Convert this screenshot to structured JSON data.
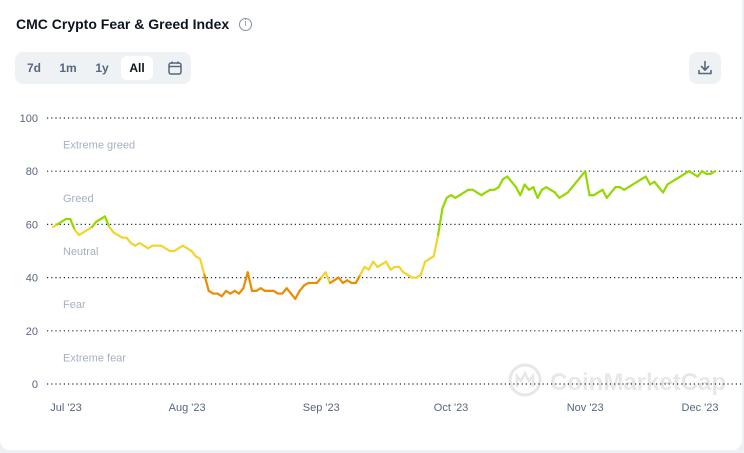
{
  "header": {
    "title": "CMC Crypto Fear & Greed Index",
    "info_icon": "info-icon"
  },
  "range_tabs": [
    {
      "label": "7d",
      "active": false
    },
    {
      "label": "1m",
      "active": false
    },
    {
      "label": "1y",
      "active": false
    },
    {
      "label": "All",
      "active": true
    }
  ],
  "toolbar": {
    "calendar_icon": "calendar-icon",
    "download_icon": "download-icon"
  },
  "watermark": "CoinMarketCap",
  "chart_data": {
    "type": "line",
    "y_ticks": [
      "100",
      "80",
      "60",
      "40",
      "20",
      "0"
    ],
    "ylim": [
      0,
      100
    ],
    "zones": [
      "Extreme greed",
      "Greed",
      "Neutral",
      "Fear",
      "Extreme fear"
    ],
    "x_ticks": [
      {
        "label": "Jul '23",
        "day": 0
      },
      {
        "label": "Aug '23",
        "day": 31
      },
      {
        "label": "Sep '23",
        "day": 62
      },
      {
        "label": "Oct '23",
        "day": 92
      },
      {
        "label": "Nov '23",
        "day": 123
      },
      {
        "label": "Dec '23",
        "day": 153
      }
    ],
    "xlim": [
      0,
      153
    ],
    "grid": true,
    "colors": {
      "fear": "#ea8c00",
      "neutral": "#f3d42f",
      "greed": "#93d900",
      "grid": "#1f2937"
    },
    "series": [
      {
        "x": [
          0,
          1,
          2,
          3,
          4,
          5,
          6,
          7,
          8,
          9,
          10,
          11,
          12,
          13,
          14,
          15,
          16,
          17,
          18,
          19,
          20,
          21,
          22,
          23,
          24,
          25,
          26,
          27,
          28,
          29,
          30,
          31,
          32,
          33,
          34,
          35,
          36,
          37,
          38,
          39,
          40,
          41,
          42,
          43,
          44,
          45,
          46,
          47,
          48,
          49,
          50,
          51,
          52,
          53,
          54,
          55,
          56,
          57,
          58,
          59,
          60,
          61,
          62,
          63,
          64,
          65,
          66,
          67,
          68,
          69,
          70,
          71,
          72,
          73,
          74,
          75,
          76,
          77,
          78,
          79,
          80,
          81,
          82,
          83,
          84,
          85,
          86,
          87,
          88,
          89,
          90,
          91,
          92,
          93,
          94,
          95,
          96,
          97,
          98,
          99,
          100,
          101,
          102,
          103,
          104,
          105,
          106,
          107,
          108,
          109,
          110,
          111,
          112,
          113,
          114,
          115,
          116,
          117,
          118,
          119,
          120,
          121,
          122,
          123,
          124,
          125,
          126,
          127,
          128,
          129,
          130,
          131,
          132,
          133,
          134,
          135,
          136,
          137,
          138,
          139,
          140,
          141,
          142,
          143,
          144,
          145,
          146,
          147,
          148,
          149,
          150,
          151,
          152,
          153
        ],
        "values": [
          59,
          60,
          61,
          62,
          62,
          58,
          56,
          57,
          58,
          59,
          61,
          62,
          63,
          59,
          57,
          56,
          55,
          55,
          53,
          52,
          53,
          52,
          51,
          52,
          52,
          52,
          51,
          50,
          50,
          51,
          52,
          51,
          50,
          48,
          47,
          41,
          35,
          34,
          34,
          33,
          35,
          34,
          35,
          34,
          36,
          42,
          35,
          35,
          36,
          35,
          35,
          35,
          34,
          34,
          36,
          34,
          32,
          35,
          37,
          38,
          38,
          38,
          40,
          42,
          38,
          39,
          40,
          38,
          39,
          38,
          38,
          41,
          44,
          43,
          46,
          44,
          45,
          46,
          43,
          44,
          44,
          42,
          41,
          40,
          40,
          41,
          46,
          47,
          48,
          56,
          66,
          70,
          71,
          70,
          71,
          72,
          73,
          73,
          72,
          71,
          72,
          73,
          73,
          74,
          77,
          78,
          76,
          74,
          71,
          75,
          73,
          74,
          70,
          73,
          74,
          73,
          72,
          70,
          71,
          72,
          74,
          76,
          78,
          80,
          71,
          71,
          72,
          73,
          70,
          72,
          74,
          74,
          73,
          74,
          75,
          76,
          77,
          78,
          75,
          76,
          74,
          72,
          75,
          76,
          77,
          78,
          79,
          80,
          79,
          78,
          80,
          79,
          79,
          80
        ]
      }
    ]
  }
}
